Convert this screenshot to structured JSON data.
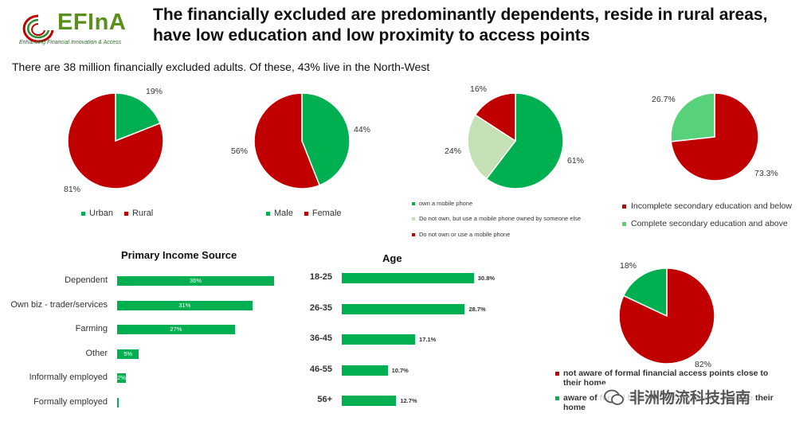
{
  "header": {
    "logo_text": "EFInA",
    "logo_sub": "Enhancing Financial Innovation & Access",
    "title_line1": "The financially excluded are predominantly dependents, reside in rural areas,",
    "title_line2": "have low education and low proximity to access points",
    "subtitle": "There are 38 million financially excluded adults. Of these, 43% live in the North-West"
  },
  "colors": {
    "red": "#c00000",
    "green": "#00b050",
    "light_green": "#c5e0b4",
    "mid_green": "#57d27a"
  },
  "chart_data": [
    {
      "id": "location",
      "type": "pie",
      "title": "",
      "slices": [
        {
          "label": "Urban",
          "value": 19,
          "display": "19%",
          "color": "#00b050"
        },
        {
          "label": "Rural",
          "value": 81,
          "display": "81%",
          "color": "#c00000"
        }
      ]
    },
    {
      "id": "gender",
      "type": "pie",
      "title": "",
      "slices": [
        {
          "label": "Male",
          "value": 44,
          "display": "44%",
          "color": "#00b050"
        },
        {
          "label": "Female",
          "value": 56,
          "display": "56%",
          "color": "#c00000"
        }
      ]
    },
    {
      "id": "phone",
      "type": "pie",
      "title": "",
      "slices": [
        {
          "label": "own a mobile phone",
          "value": 61,
          "display": "61%",
          "color": "#00b050"
        },
        {
          "label": "Do not own, but use a mobile phone owned by someone else",
          "value": 24,
          "display": "24%",
          "color": "#c5e0b4"
        },
        {
          "label": "Do not own or use a mobile phone",
          "value": 16,
          "display": "16%",
          "color": "#c00000"
        }
      ]
    },
    {
      "id": "education",
      "type": "pie",
      "title": "",
      "slices": [
        {
          "label": "Incomplete secondary education and below",
          "value": 73.3,
          "display": "73.3%",
          "color": "#c00000"
        },
        {
          "label": "Complete secondary education and above",
          "value": 26.7,
          "display": "26.7%",
          "color": "#57d27a"
        }
      ]
    },
    {
      "id": "income",
      "type": "bar",
      "orientation": "horizontal",
      "title": "Primary Income Source",
      "categories": [
        "Dependent",
        "Own biz - trader/services",
        "Farming",
        "Other",
        "Informally employed",
        "Formally employed"
      ],
      "values": [
        36,
        31,
        27,
        5,
        2,
        0.3
      ],
      "labels": [
        "36%",
        "31%",
        "27%",
        "5%",
        "2%",
        ""
      ],
      "xlim": [
        0,
        40
      ]
    },
    {
      "id": "age",
      "type": "bar",
      "orientation": "horizontal",
      "title": "Age",
      "categories": [
        "18-25",
        "26-35",
        "36-45",
        "46-55",
        "56+"
      ],
      "values": [
        30.8,
        28.7,
        17.1,
        10.7,
        12.7
      ],
      "labels": [
        "30.8%",
        "28.7%",
        "17.1%",
        "10.7%",
        "12.7%"
      ],
      "xlim": [
        0,
        34
      ]
    },
    {
      "id": "access",
      "type": "pie",
      "title": "",
      "slices": [
        {
          "label": "not aware of formal financial access points close to their home",
          "value": 82,
          "display": "82%",
          "color": "#c00000"
        },
        {
          "label": "aware of formal financial access points close to their home",
          "value": 18,
          "display": "18%",
          "color": "#00b050"
        }
      ]
    }
  ],
  "legends": {
    "aware_line1": "not aware of formal financial access points close to",
    "aware_line2": "their home",
    "aware_green_line1": "aware of formal financial access points close to their",
    "aware_green_line2": "home"
  },
  "watermark": "非洲物流科技指南"
}
